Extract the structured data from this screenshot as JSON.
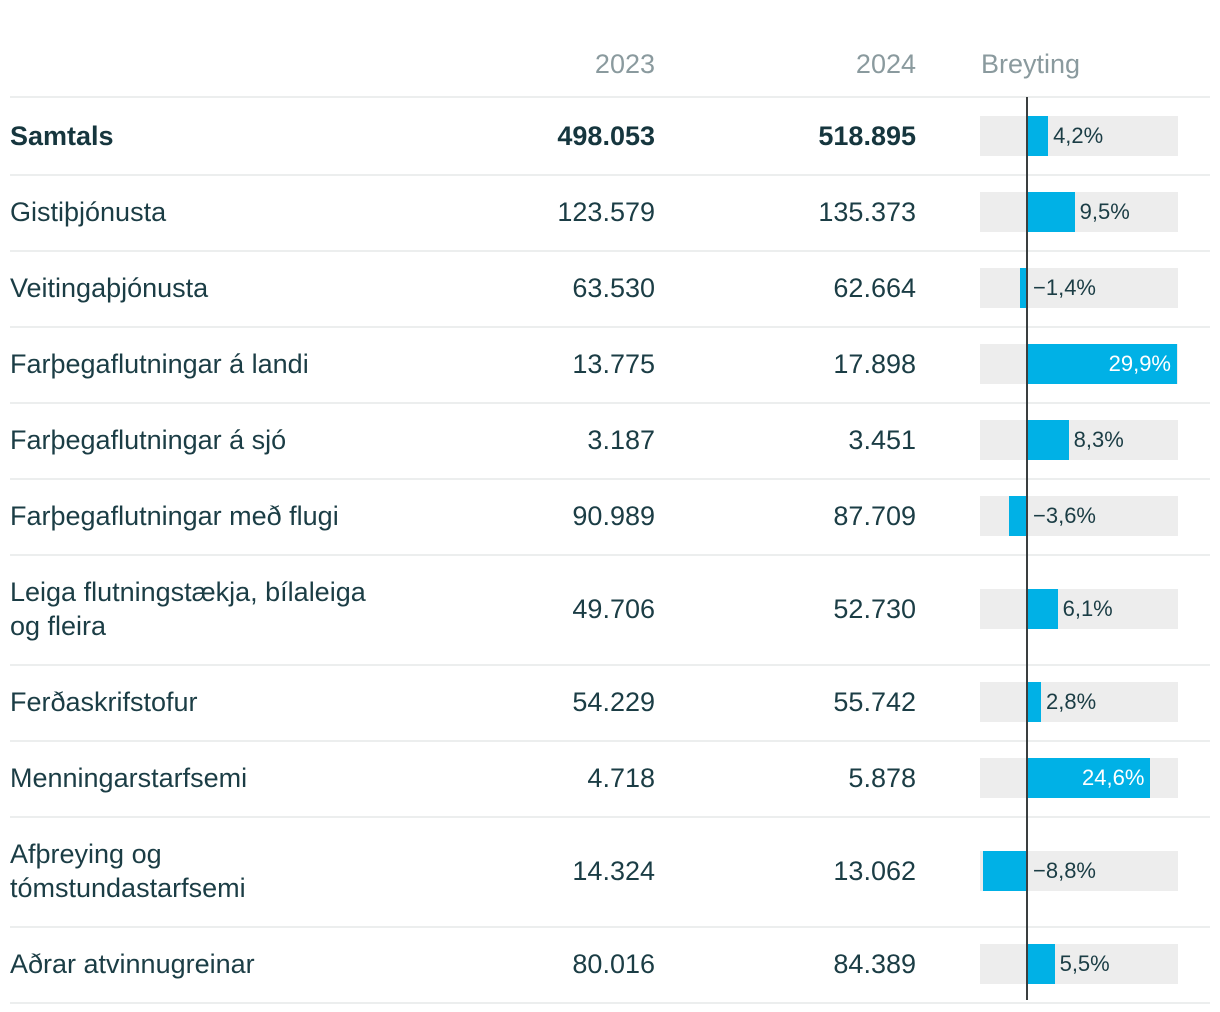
{
  "headers": {
    "label": "",
    "y2023": "2023",
    "y2024": "2024",
    "change": "Breyting"
  },
  "chart_data": {
    "type": "table",
    "columns": [
      "",
      "2023",
      "2024",
      "Breyting"
    ],
    "change_axis": {
      "min": -9.5,
      "max": 29.9,
      "zero": 0
    },
    "rows": [
      {
        "label": "Samtals",
        "y2023": "498.053",
        "y2024": "518.895",
        "change": 4.2,
        "change_label": "4,2%",
        "bold": true
      },
      {
        "label": "Gistiþjónusta",
        "y2023": "123.579",
        "y2024": "135.373",
        "change": 9.5,
        "change_label": "9,5%"
      },
      {
        "label": "Veitingaþjónusta",
        "y2023": "63.530",
        "y2024": "62.664",
        "change": -1.4,
        "change_label": "−1,4%"
      },
      {
        "label": "Farþegaflutningar á landi",
        "y2023": "13.775",
        "y2024": "17.898",
        "change": 29.9,
        "change_label": "29,9%"
      },
      {
        "label": "Farþegaflutningar á sjó",
        "y2023": "3.187",
        "y2024": "3.451",
        "change": 8.3,
        "change_label": "8,3%"
      },
      {
        "label": "Farþegaflutningar með flugi",
        "y2023": "90.989",
        "y2024": "87.709",
        "change": -3.6,
        "change_label": "−3,6%"
      },
      {
        "label": "Leiga flutningstækja, bílaleiga og fleira",
        "label_lines": [
          "Leiga flutningstækja, bílaleiga",
          "og fleira"
        ],
        "y2023": "49.706",
        "y2024": "52.730",
        "change": 6.1,
        "change_label": "6,1%"
      },
      {
        "label": "Ferðaskrifstofur",
        "y2023": "54.229",
        "y2024": "55.742",
        "change": 2.8,
        "change_label": "2,8%"
      },
      {
        "label": "Menningarstarfsemi",
        "y2023": "4.718",
        "y2024": "5.878",
        "change": 24.6,
        "change_label": "24,6%"
      },
      {
        "label": "Afþreying og tómstundastarfsemi",
        "label_lines": [
          "Afþreying og",
          "tómstundastarfsemi"
        ],
        "y2023": "14.324",
        "y2024": "13.062",
        "change": -8.8,
        "change_label": "−8,8%"
      },
      {
        "label": "Aðrar atvinnugreinar",
        "y2023": "80.016",
        "y2024": "84.389",
        "change": 5.5,
        "change_label": "5,5%"
      }
    ]
  },
  "colors": {
    "bar": "#00b1e6",
    "track": "#ededed",
    "axis": "#3a3f40",
    "text": "#1b3d45",
    "header": "#8a9a9e"
  }
}
